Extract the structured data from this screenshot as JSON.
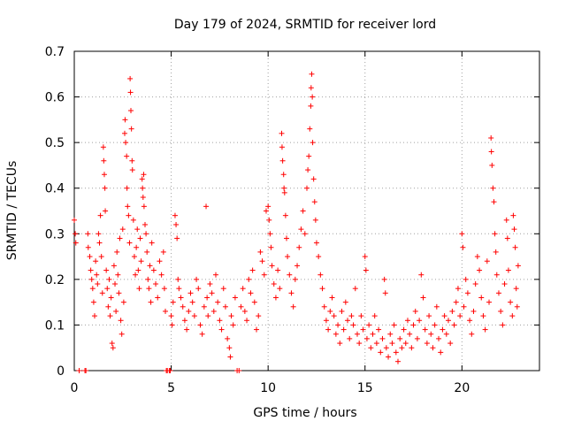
{
  "chart_data": {
    "type": "scatter",
    "title": "Day 179 of 2024, SRMTID for receiver lord",
    "xlabel": "GPS time / hours",
    "ylabel": "SRMTID / TECUs",
    "xlim": [
      0,
      24
    ],
    "ylim": [
      0,
      0.7
    ],
    "xticks": [
      0,
      5,
      10,
      15,
      20
    ],
    "yticks": [
      0,
      0.1,
      0.2,
      0.3,
      0.4,
      0.5,
      0.6,
      0.7
    ],
    "xtick_labels": [
      "0",
      "5",
      "10",
      "15",
      "20"
    ],
    "ytick_labels": [
      "0",
      "0.1",
      "0.2",
      "0.3",
      "0.4",
      "0.5",
      "0.6",
      "0.7"
    ],
    "grid": true,
    "marker": "+",
    "series": [
      {
        "name": "SRMTID",
        "color": "#ff0000",
        "points": [
          [
            0.0,
            0.33
          ],
          [
            0.05,
            0.3
          ],
          [
            0.08,
            0.28
          ],
          [
            0.25,
            0.0
          ],
          [
            0.55,
            0.0
          ],
          [
            0.6,
            0.0
          ],
          [
            0.7,
            0.3
          ],
          [
            0.72,
            0.27
          ],
          [
            0.8,
            0.25
          ],
          [
            0.85,
            0.22
          ],
          [
            0.9,
            0.2
          ],
          [
            0.95,
            0.18
          ],
          [
            1.0,
            0.15
          ],
          [
            1.05,
            0.12
          ],
          [
            1.1,
            0.24
          ],
          [
            1.15,
            0.21
          ],
          [
            1.2,
            0.19
          ],
          [
            1.25,
            0.3
          ],
          [
            1.3,
            0.28
          ],
          [
            1.35,
            0.34
          ],
          [
            1.4,
            0.25
          ],
          [
            1.45,
            0.17
          ],
          [
            1.5,
            0.49
          ],
          [
            1.52,
            0.46
          ],
          [
            1.55,
            0.43
          ],
          [
            1.58,
            0.4
          ],
          [
            1.6,
            0.35
          ],
          [
            1.65,
            0.22
          ],
          [
            1.7,
            0.18
          ],
          [
            1.75,
            0.14
          ],
          [
            1.8,
            0.2
          ],
          [
            1.85,
            0.12
          ],
          [
            1.9,
            0.16
          ],
          [
            1.95,
            0.06
          ],
          [
            2.0,
            0.05
          ],
          [
            2.05,
            0.23
          ],
          [
            2.1,
            0.19
          ],
          [
            2.15,
            0.13
          ],
          [
            2.2,
            0.26
          ],
          [
            2.25,
            0.21
          ],
          [
            2.3,
            0.17
          ],
          [
            2.35,
            0.29
          ],
          [
            2.4,
            0.11
          ],
          [
            2.45,
            0.08
          ],
          [
            2.5,
            0.31
          ],
          [
            2.55,
            0.15
          ],
          [
            2.6,
            0.52
          ],
          [
            2.62,
            0.55
          ],
          [
            2.65,
            0.5
          ],
          [
            2.7,
            0.47
          ],
          [
            2.72,
            0.4
          ],
          [
            2.75,
            0.36
          ],
          [
            2.8,
            0.34
          ],
          [
            2.85,
            0.28
          ],
          [
            2.88,
            0.64
          ],
          [
            2.9,
            0.61
          ],
          [
            2.92,
            0.57
          ],
          [
            2.95,
            0.53
          ],
          [
            2.98,
            0.46
          ],
          [
            3.0,
            0.44
          ],
          [
            3.05,
            0.33
          ],
          [
            3.1,
            0.25
          ],
          [
            3.15,
            0.21
          ],
          [
            3.2,
            0.27
          ],
          [
            3.25,
            0.31
          ],
          [
            3.3,
            0.22
          ],
          [
            3.35,
            0.18
          ],
          [
            3.4,
            0.29
          ],
          [
            3.45,
            0.24
          ],
          [
            3.5,
            0.42
          ],
          [
            3.52,
            0.4
          ],
          [
            3.55,
            0.38
          ],
          [
            3.58,
            0.43
          ],
          [
            3.6,
            0.36
          ],
          [
            3.65,
            0.32
          ],
          [
            3.7,
            0.3
          ],
          [
            3.75,
            0.26
          ],
          [
            3.8,
            0.2
          ],
          [
            3.85,
            0.18
          ],
          [
            3.9,
            0.23
          ],
          [
            3.95,
            0.15
          ],
          [
            4.0,
            0.28
          ],
          [
            4.1,
            0.22
          ],
          [
            4.2,
            0.19
          ],
          [
            4.3,
            0.16
          ],
          [
            4.4,
            0.24
          ],
          [
            4.5,
            0.21
          ],
          [
            4.6,
            0.26
          ],
          [
            4.65,
            0.18
          ],
          [
            4.7,
            0.13
          ],
          [
            4.75,
            0.0
          ],
          [
            4.8,
            0.0
          ],
          [
            4.9,
            0.0
          ],
          [
            4.95,
            0.0
          ],
          [
            5.0,
            0.12
          ],
          [
            5.05,
            0.1
          ],
          [
            5.1,
            0.15
          ],
          [
            5.2,
            0.34
          ],
          [
            5.25,
            0.32
          ],
          [
            5.3,
            0.29
          ],
          [
            5.35,
            0.2
          ],
          [
            5.4,
            0.18
          ],
          [
            5.5,
            0.16
          ],
          [
            5.6,
            0.14
          ],
          [
            5.7,
            0.11
          ],
          [
            5.8,
            0.09
          ],
          [
            5.9,
            0.13
          ],
          [
            6.0,
            0.17
          ],
          [
            6.1,
            0.15
          ],
          [
            6.2,
            0.12
          ],
          [
            6.3,
            0.2
          ],
          [
            6.4,
            0.18
          ],
          [
            6.5,
            0.1
          ],
          [
            6.6,
            0.08
          ],
          [
            6.7,
            0.14
          ],
          [
            6.8,
            0.36
          ],
          [
            6.85,
            0.16
          ],
          [
            6.9,
            0.12
          ],
          [
            7.0,
            0.19
          ],
          [
            7.1,
            0.17
          ],
          [
            7.2,
            0.13
          ],
          [
            7.3,
            0.21
          ],
          [
            7.4,
            0.15
          ],
          [
            7.5,
            0.11
          ],
          [
            7.6,
            0.09
          ],
          [
            7.7,
            0.18
          ],
          [
            7.8,
            0.14
          ],
          [
            7.9,
            0.07
          ],
          [
            8.0,
            0.05
          ],
          [
            8.05,
            0.03
          ],
          [
            8.1,
            0.12
          ],
          [
            8.2,
            0.1
          ],
          [
            8.3,
            0.16
          ],
          [
            8.4,
            0.0
          ],
          [
            8.5,
            0.0
          ],
          [
            8.6,
            0.14
          ],
          [
            8.7,
            0.18
          ],
          [
            8.8,
            0.13
          ],
          [
            8.9,
            0.11
          ],
          [
            9.0,
            0.2
          ],
          [
            9.1,
            0.17
          ],
          [
            9.2,
            0.22
          ],
          [
            9.3,
            0.15
          ],
          [
            9.4,
            0.09
          ],
          [
            9.5,
            0.12
          ],
          [
            9.6,
            0.26
          ],
          [
            9.7,
            0.24
          ],
          [
            9.8,
            0.21
          ],
          [
            9.9,
            0.35
          ],
          [
            10.0,
            0.36
          ],
          [
            10.05,
            0.33
          ],
          [
            10.1,
            0.3
          ],
          [
            10.15,
            0.27
          ],
          [
            10.2,
            0.23
          ],
          [
            10.3,
            0.19
          ],
          [
            10.4,
            0.16
          ],
          [
            10.5,
            0.22
          ],
          [
            10.6,
            0.18
          ],
          [
            10.7,
            0.52
          ],
          [
            10.72,
            0.49
          ],
          [
            10.75,
            0.46
          ],
          [
            10.8,
            0.43
          ],
          [
            10.82,
            0.4
          ],
          [
            10.85,
            0.39
          ],
          [
            10.9,
            0.34
          ],
          [
            10.95,
            0.29
          ],
          [
            11.0,
            0.25
          ],
          [
            11.1,
            0.21
          ],
          [
            11.2,
            0.17
          ],
          [
            11.3,
            0.14
          ],
          [
            11.4,
            0.2
          ],
          [
            11.5,
            0.23
          ],
          [
            11.6,
            0.27
          ],
          [
            11.7,
            0.31
          ],
          [
            11.8,
            0.35
          ],
          [
            11.9,
            0.3
          ],
          [
            12.0,
            0.4
          ],
          [
            12.05,
            0.44
          ],
          [
            12.1,
            0.47
          ],
          [
            12.15,
            0.53
          ],
          [
            12.2,
            0.58
          ],
          [
            12.22,
            0.62
          ],
          [
            12.25,
            0.65
          ],
          [
            12.28,
            0.6
          ],
          [
            12.3,
            0.5
          ],
          [
            12.35,
            0.42
          ],
          [
            12.4,
            0.37
          ],
          [
            12.45,
            0.33
          ],
          [
            12.5,
            0.28
          ],
          [
            12.6,
            0.25
          ],
          [
            12.7,
            0.21
          ],
          [
            12.8,
            0.18
          ],
          [
            12.9,
            0.14
          ],
          [
            13.0,
            0.11
          ],
          [
            13.1,
            0.09
          ],
          [
            13.2,
            0.13
          ],
          [
            13.3,
            0.16
          ],
          [
            13.4,
            0.12
          ],
          [
            13.5,
            0.08
          ],
          [
            13.6,
            0.1
          ],
          [
            13.7,
            0.06
          ],
          [
            13.8,
            0.13
          ],
          [
            13.9,
            0.09
          ],
          [
            14.0,
            0.15
          ],
          [
            14.1,
            0.11
          ],
          [
            14.2,
            0.07
          ],
          [
            14.3,
            0.12
          ],
          [
            14.4,
            0.1
          ],
          [
            14.5,
            0.18
          ],
          [
            14.6,
            0.08
          ],
          [
            14.7,
            0.06
          ],
          [
            14.8,
            0.12
          ],
          [
            14.9,
            0.09
          ],
          [
            15.0,
            0.25
          ],
          [
            15.05,
            0.22
          ],
          [
            15.1,
            0.07
          ],
          [
            15.2,
            0.1
          ],
          [
            15.3,
            0.05
          ],
          [
            15.4,
            0.08
          ],
          [
            15.5,
            0.12
          ],
          [
            15.6,
            0.06
          ],
          [
            15.7,
            0.09
          ],
          [
            15.8,
            0.04
          ],
          [
            15.9,
            0.07
          ],
          [
            16.0,
            0.2
          ],
          [
            16.05,
            0.17
          ],
          [
            16.1,
            0.05
          ],
          [
            16.2,
            0.03
          ],
          [
            16.3,
            0.08
          ],
          [
            16.4,
            0.06
          ],
          [
            16.5,
            0.1
          ],
          [
            16.6,
            0.04
          ],
          [
            16.7,
            0.02
          ],
          [
            16.8,
            0.07
          ],
          [
            16.9,
            0.05
          ],
          [
            17.0,
            0.09
          ],
          [
            17.1,
            0.06
          ],
          [
            17.2,
            0.11
          ],
          [
            17.3,
            0.08
          ],
          [
            17.4,
            0.05
          ],
          [
            17.5,
            0.1
          ],
          [
            17.6,
            0.13
          ],
          [
            17.7,
            0.07
          ],
          [
            17.8,
            0.11
          ],
          [
            17.9,
            0.21
          ],
          [
            18.0,
            0.16
          ],
          [
            18.1,
            0.09
          ],
          [
            18.2,
            0.06
          ],
          [
            18.3,
            0.12
          ],
          [
            18.4,
            0.08
          ],
          [
            18.5,
            0.05
          ],
          [
            18.6,
            0.1
          ],
          [
            18.7,
            0.14
          ],
          [
            18.8,
            0.07
          ],
          [
            18.9,
            0.04
          ],
          [
            19.0,
            0.09
          ],
          [
            19.1,
            0.12
          ],
          [
            19.2,
            0.08
          ],
          [
            19.3,
            0.11
          ],
          [
            19.4,
            0.06
          ],
          [
            19.5,
            0.13
          ],
          [
            19.6,
            0.1
          ],
          [
            19.7,
            0.15
          ],
          [
            19.8,
            0.18
          ],
          [
            19.9,
            0.12
          ],
          [
            20.0,
            0.3
          ],
          [
            20.05,
            0.27
          ],
          [
            20.1,
            0.14
          ],
          [
            20.2,
            0.2
          ],
          [
            20.3,
            0.17
          ],
          [
            20.4,
            0.11
          ],
          [
            20.5,
            0.08
          ],
          [
            20.6,
            0.13
          ],
          [
            20.7,
            0.19
          ],
          [
            20.8,
            0.25
          ],
          [
            20.9,
            0.22
          ],
          [
            21.0,
            0.16
          ],
          [
            21.1,
            0.12
          ],
          [
            21.2,
            0.09
          ],
          [
            21.3,
            0.24
          ],
          [
            21.4,
            0.15
          ],
          [
            21.5,
            0.51
          ],
          [
            21.52,
            0.48
          ],
          [
            21.55,
            0.45
          ],
          [
            21.6,
            0.4
          ],
          [
            21.65,
            0.37
          ],
          [
            21.7,
            0.3
          ],
          [
            21.75,
            0.26
          ],
          [
            21.8,
            0.21
          ],
          [
            21.9,
            0.17
          ],
          [
            22.0,
            0.13
          ],
          [
            22.1,
            0.1
          ],
          [
            22.2,
            0.19
          ],
          [
            22.3,
            0.33
          ],
          [
            22.35,
            0.29
          ],
          [
            22.4,
            0.22
          ],
          [
            22.5,
            0.15
          ],
          [
            22.6,
            0.12
          ],
          [
            22.65,
            0.34
          ],
          [
            22.7,
            0.31
          ],
          [
            22.75,
            0.27
          ],
          [
            22.8,
            0.18
          ],
          [
            22.85,
            0.14
          ],
          [
            22.9,
            0.23
          ]
        ]
      }
    ]
  }
}
